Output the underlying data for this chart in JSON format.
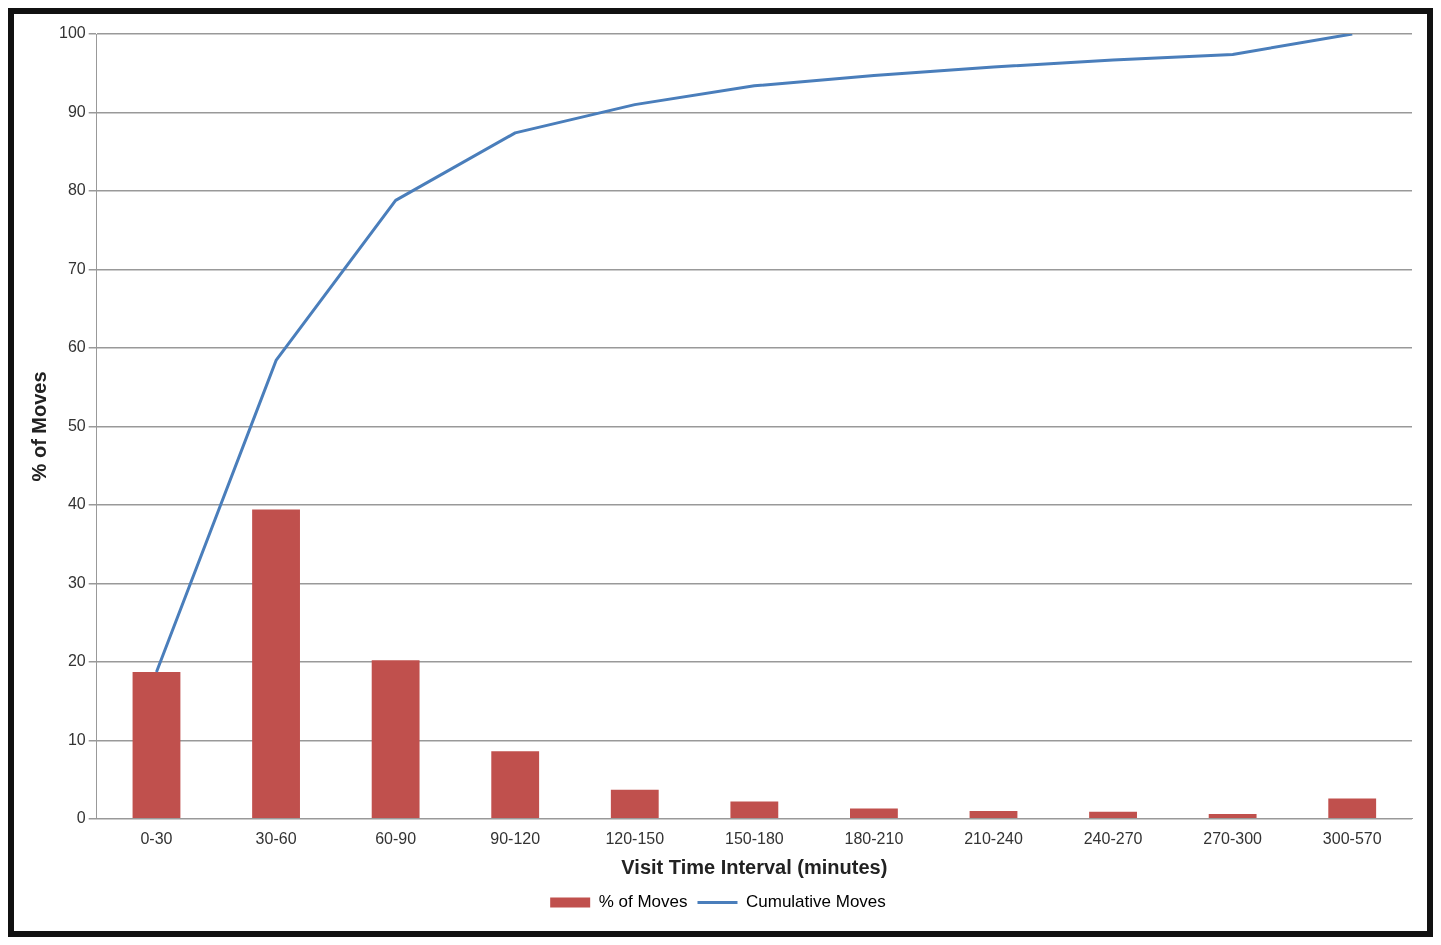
{
  "chart_data": {
    "type": "bar",
    "xlabel": "Visit Time Interval (minutes)",
    "ylabel": "% of Moves",
    "categories": [
      "0-30",
      "30-60",
      "60-90",
      "90-120",
      "120-150",
      "150-180",
      "180-210",
      "210-240",
      "240-270",
      "270-300",
      "300-570"
    ],
    "series": [
      {
        "name": "% of Moves",
        "color": "#c0504d",
        "values": [
          18.7,
          39.4,
          20.2,
          8.6,
          3.7,
          2.2,
          1.3,
          1.0,
          0.9,
          0.6,
          2.6
        ]
      },
      {
        "name": "Cumulative Moves",
        "type": "line",
        "color": "#4a7ebb",
        "values": [
          18.7,
          58.4,
          78.8,
          87.4,
          91.0,
          93.4,
          94.7,
          95.8,
          96.7,
          97.4,
          100
        ]
      }
    ],
    "ylim": [
      0,
      100
    ],
    "yticks": [
      0,
      10,
      20,
      30,
      40,
      50,
      60,
      70,
      80,
      90,
      100
    ],
    "grid": "y",
    "legend": "bottom",
    "marker": "none"
  }
}
